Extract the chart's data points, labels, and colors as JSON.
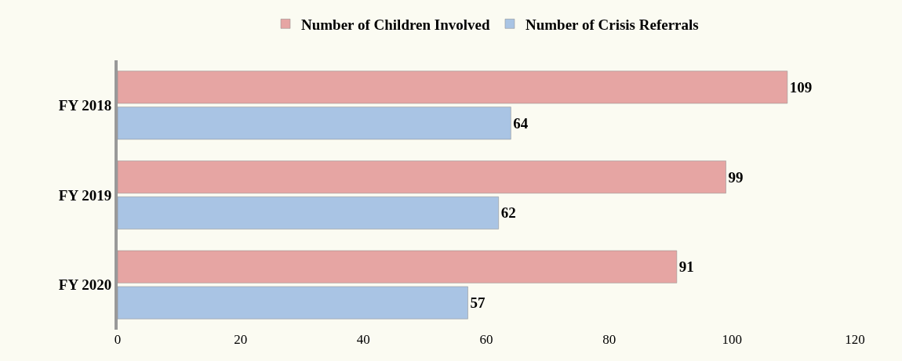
{
  "chart_data": {
    "type": "bar",
    "orientation": "horizontal",
    "categories": [
      "FY 2018",
      "FY 2019",
      "FY 2020"
    ],
    "series": [
      {
        "name": "Number of Children Involved",
        "color": "#e6a5a3",
        "values": [
          109,
          99,
          91
        ]
      },
      {
        "name": "Number of Crisis Referrals",
        "color": "#a9c4e4",
        "values": [
          64,
          62,
          57
        ]
      }
    ],
    "xlim": [
      0,
      120
    ],
    "xticks": [
      0,
      20,
      40,
      60,
      80,
      100,
      120
    ],
    "data_labels": true,
    "legend": "top",
    "grid": false
  }
}
